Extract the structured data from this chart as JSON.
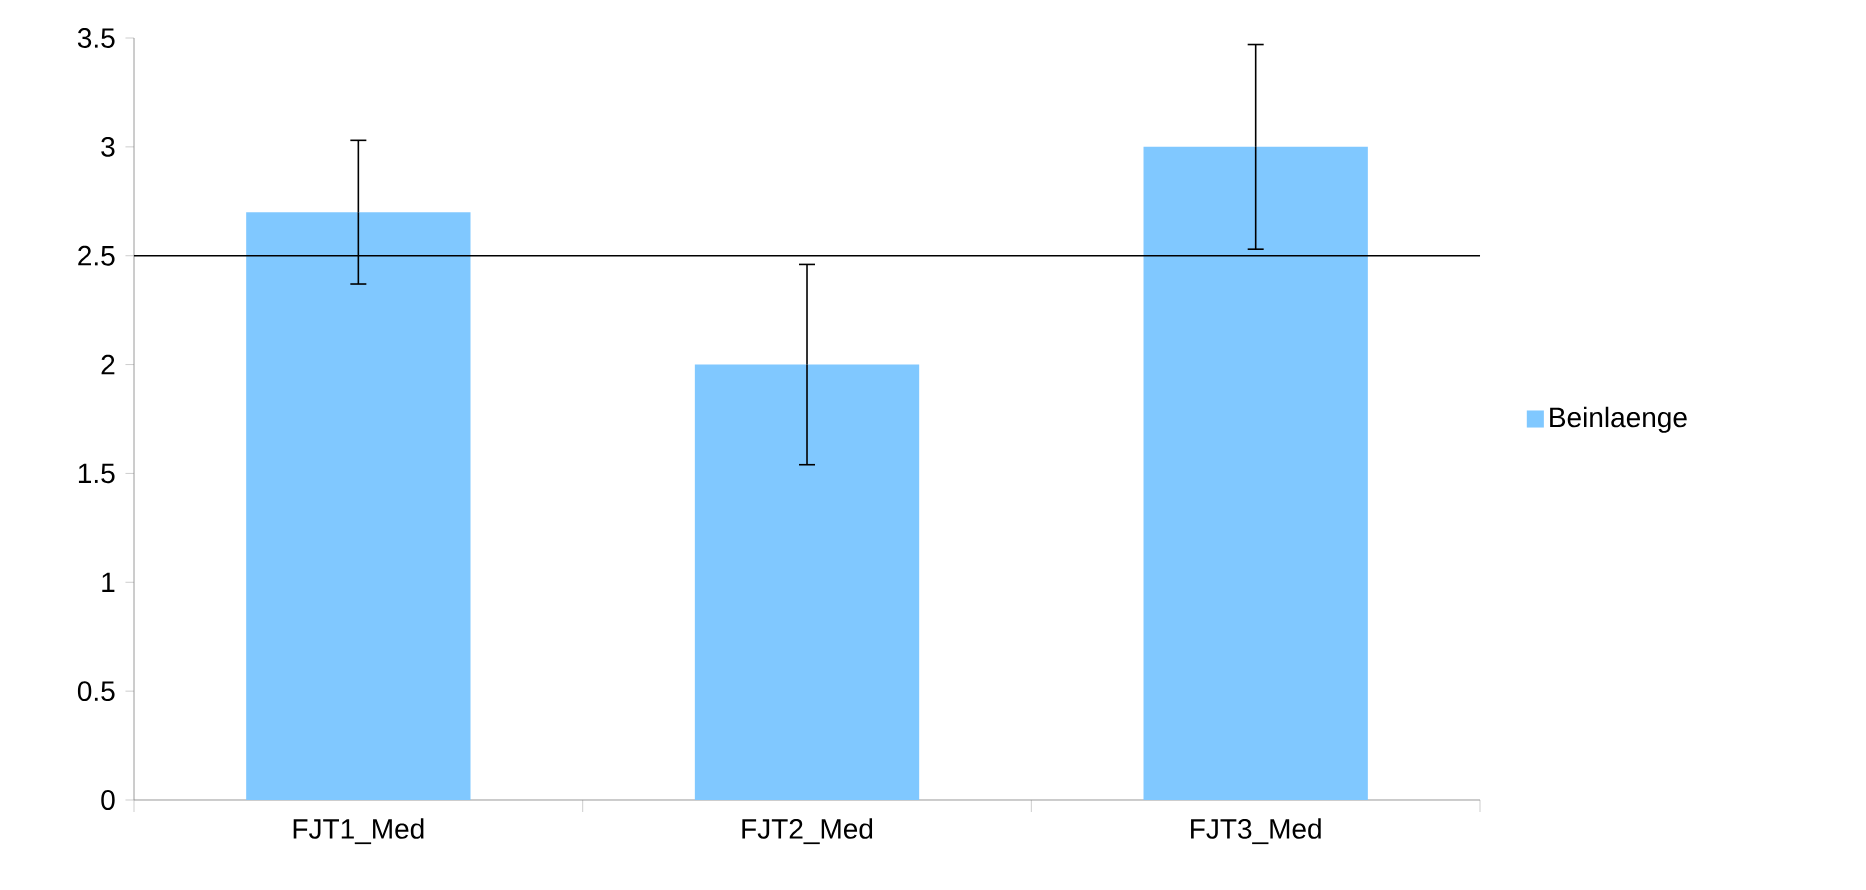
{
  "chart_data": {
    "type": "bar",
    "categories": [
      "FJT1_Med",
      "FJT2_Med",
      "FJT3_Med"
    ],
    "series": [
      {
        "name": "Beinlaenge",
        "color": "#80c8ff",
        "values": [
          2.7,
          2.0,
          3.0
        ],
        "errors": [
          0.33,
          0.46,
          0.47
        ]
      }
    ],
    "ylim": [
      0,
      3.5
    ],
    "yticks": [
      0,
      0.5,
      1,
      1.5,
      2,
      2.5,
      3,
      3.5
    ],
    "ref_lines": [
      {
        "axis": "y",
        "value": 2.5,
        "color": "#000000"
      }
    ],
    "grid": false,
    "legend": "right"
  }
}
